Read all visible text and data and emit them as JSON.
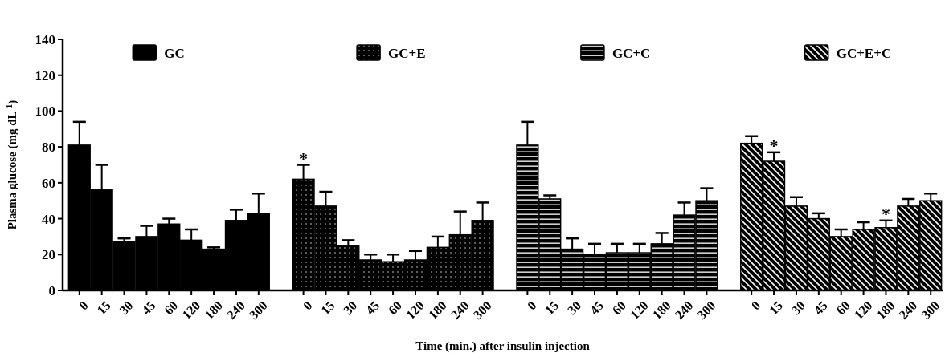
{
  "chart_data": {
    "type": "bar",
    "xlabel": "Time (min.) after insulin injection",
    "ylabel": "Plasma glucose (mg dL$^{-1}$)",
    "categories": [
      "0",
      "15",
      "30",
      "45",
      "60",
      "120",
      "180",
      "240",
      "300",
      null,
      "0",
      "15",
      "30",
      "45",
      "60",
      "120",
      "180",
      "240",
      "300",
      null,
      "0",
      "15",
      "30",
      "45",
      "60",
      "120",
      "180",
      "240",
      "300",
      null,
      "0",
      "15",
      "30",
      "45",
      "60",
      "120",
      "180",
      "240",
      "300"
    ],
    "series": [
      {
        "name": "GC",
        "color": "#000000",
        "values": [
          81,
          56,
          27,
          30,
          37,
          28,
          23,
          39,
          43,
          null,
          null,
          null,
          null,
          null,
          null,
          null,
          null,
          null,
          null,
          null,
          null,
          null,
          null,
          null,
          null,
          null,
          null,
          null,
          null,
          null,
          null,
          null,
          null,
          null,
          null,
          null,
          null,
          null,
          null
        ],
        "errors": [
          [
            81,
            94
          ],
          [
            56,
            70
          ],
          [
            27,
            29
          ],
          [
            30,
            36
          ],
          [
            37,
            40
          ],
          [
            28,
            34
          ],
          [
            23,
            24
          ],
          [
            39,
            45
          ],
          [
            43,
            54
          ],
          null,
          null,
          null,
          null,
          null,
          null,
          null,
          null,
          null,
          null,
          null,
          null,
          null,
          null,
          null,
          null,
          null,
          null,
          null,
          null,
          null,
          null,
          null,
          null,
          null,
          null,
          null,
          null,
          null,
          null
        ]
      },
      {
        "name": "GC+E",
        "color": "#000000",
        "values": [
          null,
          null,
          null,
          null,
          null,
          null,
          null,
          null,
          null,
          null,
          62,
          47,
          25,
          17,
          16,
          17,
          24,
          31,
          39,
          null,
          null,
          null,
          null,
          null,
          null,
          null,
          null,
          null,
          null,
          null,
          null,
          null,
          null,
          null,
          null,
          null,
          null,
          null,
          null
        ],
        "errors": [
          null,
          null,
          null,
          null,
          null,
          null,
          null,
          null,
          null,
          null,
          [
            62,
            70
          ],
          [
            47,
            55
          ],
          [
            25,
            28
          ],
          [
            17,
            20
          ],
          [
            16,
            20
          ],
          [
            17,
            22
          ],
          [
            24,
            30
          ],
          [
            31,
            44
          ],
          [
            39,
            49
          ],
          null,
          null,
          null,
          null,
          null,
          null,
          null,
          null,
          null,
          null,
          null,
          null,
          null,
          null,
          null,
          null,
          null,
          null,
          null,
          null
        ]
      },
      {
        "name": "GC+C",
        "color": "#000000",
        "values": [
          null,
          null,
          null,
          null,
          null,
          null,
          null,
          null,
          null,
          null,
          null,
          null,
          null,
          null,
          null,
          null,
          null,
          null,
          null,
          null,
          81,
          51,
          23,
          20,
          21,
          21,
          26,
          42,
          50,
          null,
          null,
          null,
          null,
          null,
          null,
          null,
          null,
          null,
          null
        ],
        "errors": [
          null,
          null,
          null,
          null,
          null,
          null,
          null,
          null,
          null,
          null,
          null,
          null,
          null,
          null,
          null,
          null,
          null,
          null,
          null,
          null,
          [
            81,
            94
          ],
          [
            51,
            53
          ],
          [
            23,
            29
          ],
          [
            20,
            26
          ],
          [
            21,
            26
          ],
          [
            21,
            26
          ],
          [
            26,
            32
          ],
          [
            42,
            49
          ],
          [
            50,
            57
          ],
          null,
          null,
          null,
          null,
          null,
          null,
          null,
          null,
          null,
          null
        ]
      },
      {
        "name": "GC+E+C",
        "color": "#000000",
        "values": [
          null,
          null,
          null,
          null,
          null,
          null,
          null,
          null,
          null,
          null,
          null,
          null,
          null,
          null,
          null,
          null,
          null,
          null,
          null,
          null,
          null,
          null,
          null,
          null,
          null,
          null,
          null,
          null,
          null,
          null,
          82,
          72,
          47,
          40,
          30,
          34,
          35,
          47,
          50
        ],
        "errors": [
          null,
          null,
          null,
          null,
          null,
          null,
          null,
          null,
          null,
          null,
          null,
          null,
          null,
          null,
          null,
          null,
          null,
          null,
          null,
          null,
          null,
          null,
          null,
          null,
          null,
          null,
          null,
          null,
          null,
          null,
          [
            82,
            86
          ],
          [
            72,
            77
          ],
          [
            47,
            52
          ],
          [
            40,
            43
          ],
          [
            30,
            34
          ],
          [
            34,
            38
          ],
          [
            35,
            39
          ],
          [
            47,
            51
          ],
          [
            50,
            54
          ]
        ]
      }
    ],
    "ylim": [
      0,
      140
    ],
    "yticks": [
      0,
      20,
      40,
      60,
      80,
      100,
      120,
      140
    ],
    "legend": "top",
    "annotations": [
      "*",
      "*",
      "*"
    ]
  }
}
